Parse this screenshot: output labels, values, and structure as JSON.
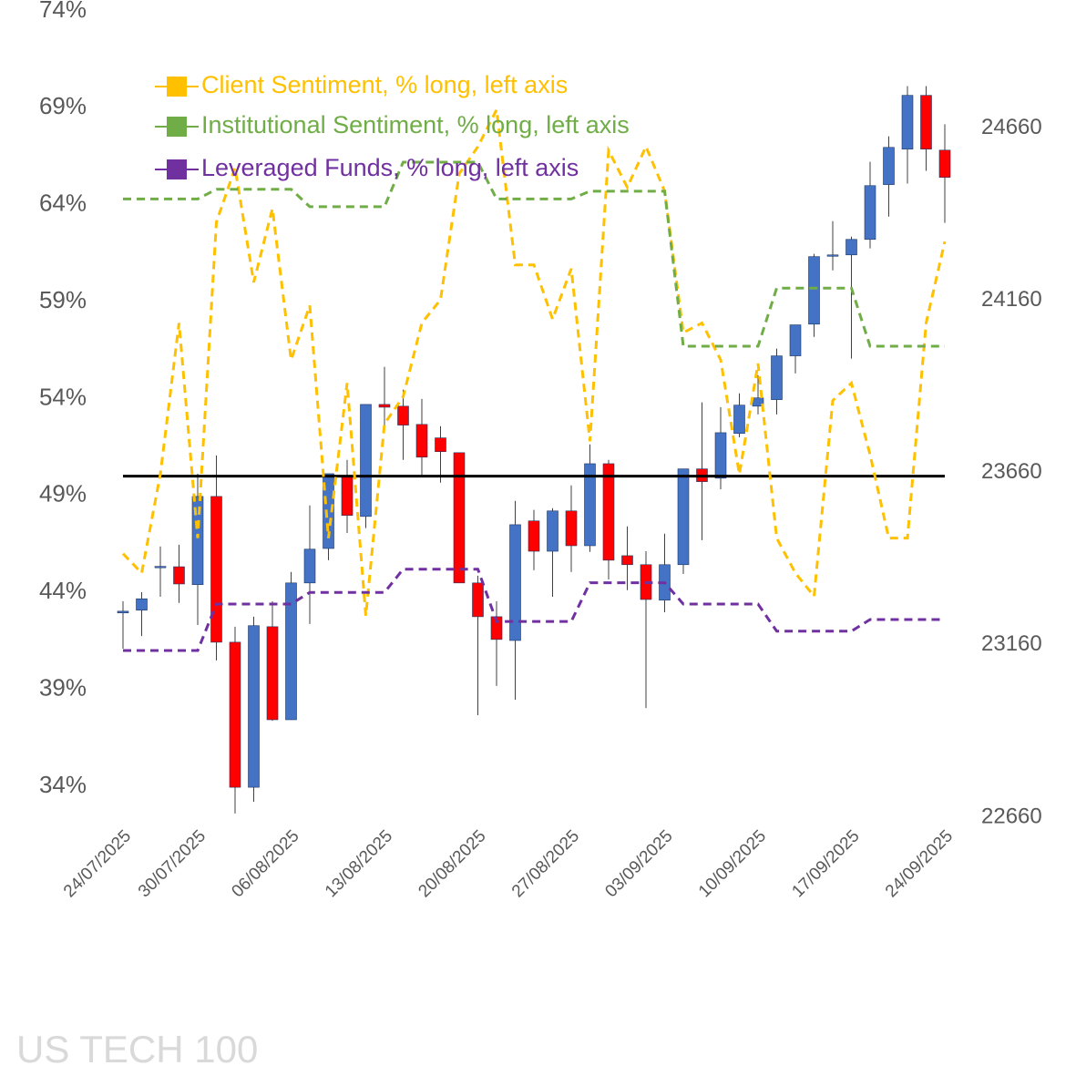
{
  "chart_data": {
    "type": "candlestick",
    "title": "US TECH 100",
    "categories": [
      "24/07/2025",
      null,
      null,
      null,
      "30/07/2025",
      null,
      null,
      null,
      null,
      "06/08/2025",
      null,
      null,
      null,
      null,
      "13/08/2025",
      null,
      null,
      null,
      null,
      "20/08/2025",
      null,
      null,
      null,
      null,
      "27/08/2025",
      null,
      null,
      null,
      null,
      "03/09/2025",
      null,
      null,
      null,
      null,
      "10/09/2025",
      null,
      null,
      null,
      null,
      "17/09/2025",
      null,
      null,
      null,
      null,
      "24/09/2025"
    ],
    "candles": {
      "axis": "y2",
      "up_color": "#4472c4",
      "down_color": "#ff0000",
      "open": [
        23253,
        23261,
        23387,
        23387,
        23335,
        23591,
        23168,
        22747,
        23213,
        22943,
        23340,
        23440,
        23649,
        23533,
        23858,
        23853,
        23800,
        23761,
        23718,
        23340,
        23242,
        23173,
        23520,
        23432,
        23549,
        23448,
        23686,
        23419,
        23393,
        23290,
        23393,
        23671,
        23644,
        23774,
        23853,
        23872,
        23999,
        24091,
        24290,
        24292,
        24337,
        24496,
        24599,
        24755,
        24596
      ],
      "high": [
        23287,
        23313,
        23446,
        23451,
        23657,
        23710,
        23213,
        23242,
        23287,
        23372,
        23565,
        23657,
        23697,
        23858,
        23967,
        23901,
        23874,
        23795,
        23718,
        23361,
        23287,
        23578,
        23552,
        23557,
        23623,
        23742,
        23697,
        23504,
        23432,
        23483,
        23671,
        23864,
        23850,
        23890,
        23943,
        24020,
        24089,
        24295,
        24390,
        24345,
        24562,
        24636,
        24782,
        24782,
        24671
      ],
      "low": [
        23149,
        23186,
        23300,
        23282,
        23218,
        23115,
        22671,
        22705,
        22940,
        22943,
        23221,
        23406,
        23485,
        23499,
        23790,
        23697,
        23647,
        23631,
        23340,
        22956,
        23041,
        23001,
        23377,
        23300,
        23372,
        23430,
        23350,
        23319,
        22977,
        23255,
        23366,
        23464,
        23612,
        23763,
        23829,
        23829,
        23948,
        24054,
        24247,
        23991,
        24311,
        24403,
        24499,
        24536,
        24385
      ],
      "close": [
        23258,
        23294,
        23388,
        23337,
        23591,
        23168,
        22747,
        23216,
        22943,
        23340,
        23438,
        23657,
        23536,
        23858,
        23850,
        23798,
        23705,
        23721,
        23340,
        23242,
        23176,
        23509,
        23432,
        23549,
        23448,
        23686,
        23406,
        23393,
        23292,
        23393,
        23671,
        23634,
        23776,
        23856,
        23877,
        23999,
        24089,
        24287,
        24292,
        24337,
        24493,
        24604,
        24755,
        24599,
        24517
      ]
    },
    "series": [
      {
        "name": "Client Sentiment, % long, left axis",
        "color": "#ffc000",
        "values": [
          46.0,
          45.0,
          50.1,
          57.9,
          46.8,
          63.1,
          65.9,
          60.0,
          63.8,
          56.0,
          58.8,
          46.8,
          54.8,
          42.8,
          52.7,
          54.1,
          57.9,
          59.1,
          65.6,
          67.0,
          68.9,
          60.9,
          60.9,
          58.1,
          60.7,
          51.8,
          66.8,
          64.9,
          67.0,
          64.7,
          57.4,
          57.9,
          56.0,
          50.1,
          55.8,
          46.8,
          45.0,
          43.8,
          53.9,
          54.8,
          51.1,
          46.8,
          46.8,
          57.9,
          62.1
        ]
      },
      {
        "name": "Institutional Sentiment, % long, left axis",
        "color": "#70ad47",
        "values": [
          64.3,
          64.3,
          64.3,
          64.3,
          64.3,
          64.8,
          64.8,
          64.8,
          64.8,
          64.8,
          63.9,
          63.9,
          63.9,
          63.9,
          63.9,
          66.2,
          66.2,
          66.2,
          66.2,
          66.2,
          64.3,
          64.3,
          64.3,
          64.3,
          64.3,
          64.7,
          64.7,
          64.7,
          64.7,
          64.7,
          56.7,
          56.7,
          56.7,
          56.7,
          56.7,
          59.7,
          59.7,
          59.7,
          59.7,
          59.7,
          56.7,
          56.7,
          56.7,
          56.7,
          56.7
        ]
      },
      {
        "name": "Leveraged Funds, % long, left axis",
        "color": "#7030a0",
        "values": [
          41.0,
          41.0,
          41.0,
          41.0,
          41.0,
          43.4,
          43.4,
          43.4,
          43.4,
          43.4,
          44.0,
          44.0,
          44.0,
          44.0,
          44.0,
          45.2,
          45.2,
          45.2,
          45.2,
          45.2,
          42.5,
          42.5,
          42.5,
          42.5,
          42.5,
          44.5,
          44.5,
          44.5,
          44.5,
          44.5,
          43.4,
          43.4,
          43.4,
          43.4,
          43.4,
          42.0,
          42.0,
          42.0,
          42.0,
          42.0,
          42.6,
          42.6,
          42.6,
          42.6,
          42.6
        ]
      }
    ],
    "line_style": "dashed",
    "reference_line": {
      "value": 50,
      "color": "#000000"
    },
    "ylim": [
      32.4,
      74
    ],
    "yticks": [
      {
        "value": 34,
        "label": "34%"
      },
      {
        "value": 39,
        "label": "39%"
      },
      {
        "value": 44,
        "label": "44%"
      },
      {
        "value": 49,
        "label": "49%"
      },
      {
        "value": 54,
        "label": "54%"
      },
      {
        "value": 59,
        "label": "59%"
      },
      {
        "value": 64,
        "label": "64%"
      },
      {
        "value": 69,
        "label": "69%"
      },
      {
        "value": 74,
        "label": "74%"
      }
    ],
    "y2lim": [
      22660,
      25000
    ],
    "y2ticks": [
      22660,
      23160,
      23660,
      24160,
      24660
    ],
    "grid": false
  }
}
